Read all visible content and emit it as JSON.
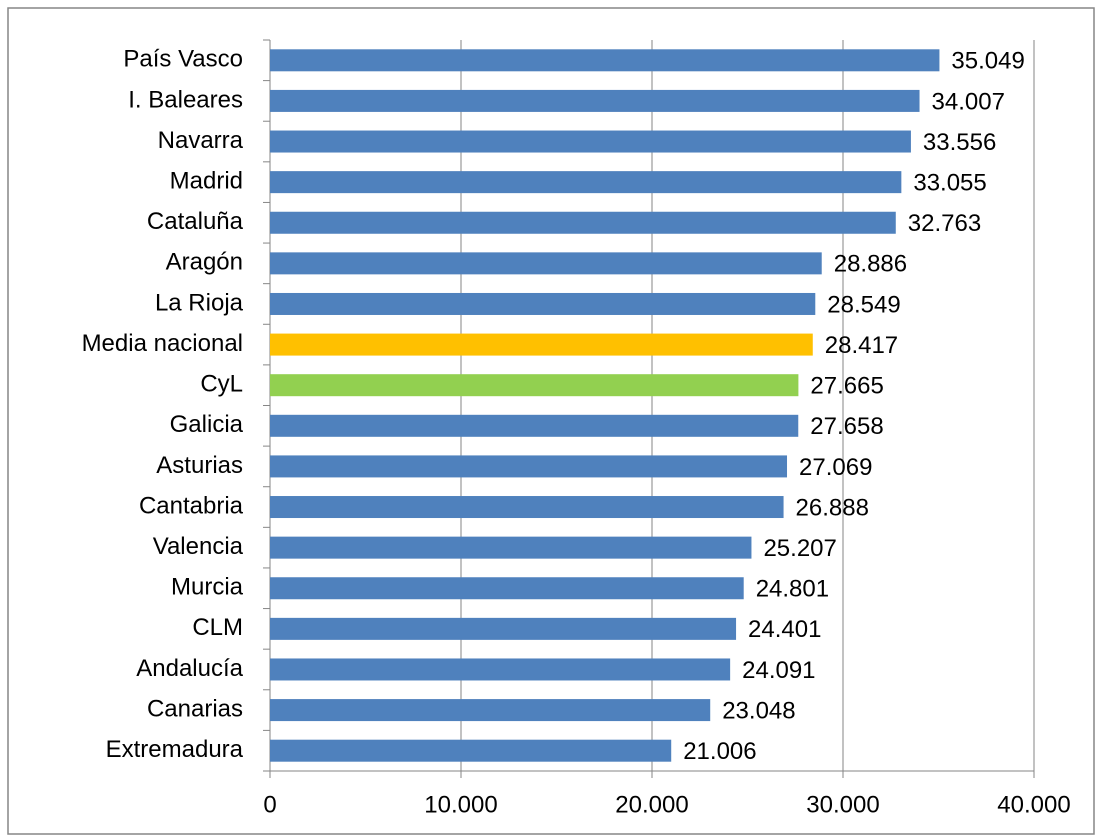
{
  "chart_data": {
    "type": "barh",
    "categories": [
      "País Vasco",
      "I. Baleares",
      "Navarra",
      "Madrid",
      "Cataluña",
      "Aragón",
      "La Rioja",
      "Media nacional",
      "CyL",
      "Galicia",
      "Asturias",
      "Cantabria",
      "Valencia",
      "Murcia",
      "CLM",
      "Andalucía",
      "Canarias",
      "Extremadura"
    ],
    "values": [
      35049,
      34007,
      33556,
      33055,
      32763,
      28886,
      28549,
      28417,
      27665,
      27658,
      27069,
      26888,
      25207,
      24801,
      24401,
      24091,
      23048,
      21006
    ],
    "value_labels": [
      "35.049",
      "34.007",
      "33.556",
      "33.055",
      "32.763",
      "28.886",
      "28.549",
      "28.417",
      "27.665",
      "27.658",
      "27.069",
      "26.888",
      "25.207",
      "24.801",
      "24.401",
      "24.091",
      "23.048",
      "21.006"
    ],
    "colors": [
      "#4f81bd",
      "#4f81bd",
      "#4f81bd",
      "#4f81bd",
      "#4f81bd",
      "#4f81bd",
      "#4f81bd",
      "#ffc000",
      "#92d050",
      "#4f81bd",
      "#4f81bd",
      "#4f81bd",
      "#4f81bd",
      "#4f81bd",
      "#4f81bd",
      "#4f81bd",
      "#4f81bd",
      "#4f81bd"
    ],
    "xlim": [
      0,
      40000
    ],
    "xticks": [
      0,
      {
        "value": 10000,
        "label": "10.000"
      },
      {
        "value": 20000,
        "label": "20.000"
      },
      {
        "value": 30000,
        "label": "30.000"
      },
      {
        "value": 40000,
        "label": "40.000"
      }
    ],
    "grid": true
  }
}
